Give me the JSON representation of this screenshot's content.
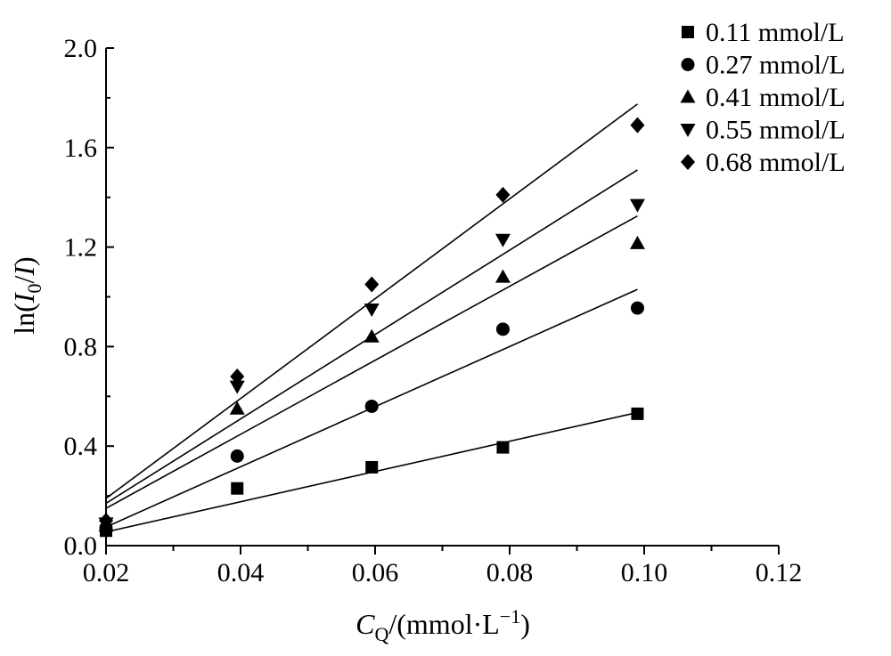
{
  "chart_data": {
    "type": "scatter",
    "title": "",
    "xlabel": {
      "main": "C",
      "sub": "Q",
      "unit_pre": "/(mmol·L",
      "sup": "−1",
      "unit_post": ")"
    },
    "ylabel": {
      "pre": "ln(",
      "var1": "I",
      "sub": "0",
      "slash": "/",
      "var2": "I",
      "post": ")"
    },
    "xlim": [
      0.02,
      0.12
    ],
    "ylim": [
      0.0,
      2.0
    ],
    "xticks": [
      0.02,
      0.04,
      0.06,
      0.08,
      0.1,
      0.12
    ],
    "xtick_labels": [
      "0.02",
      "0.04",
      "0.06",
      "0.08",
      "0.10",
      "0.12"
    ],
    "yticks": [
      0.0,
      0.4,
      0.8,
      1.2,
      1.6,
      2.0
    ],
    "ytick_labels": [
      "0.0",
      "0.4",
      "0.8",
      "1.2",
      "1.6",
      "2.0"
    ],
    "legend_position": "top-right",
    "series": [
      {
        "name": "0.11 mmol/L",
        "marker": "square",
        "x": [
          0.02,
          0.0395,
          0.0595,
          0.079,
          0.099
        ],
        "y": [
          0.06,
          0.23,
          0.315,
          0.395,
          0.53
        ],
        "fit": {
          "x": [
            0.02,
            0.099
          ],
          "y": [
            0.055,
            0.535
          ]
        }
      },
      {
        "name": "0.27 mmol/L",
        "marker": "circle",
        "x": [
          0.02,
          0.0395,
          0.0595,
          0.079,
          0.099
        ],
        "y": [
          0.07,
          0.36,
          0.56,
          0.87,
          0.955
        ],
        "fit": {
          "x": [
            0.02,
            0.099
          ],
          "y": [
            0.075,
            1.03
          ]
        }
      },
      {
        "name": "0.41 mmol/L",
        "marker": "triangle-up",
        "x": [
          0.02,
          0.0395,
          0.0595,
          0.079,
          0.099
        ],
        "y": [
          0.08,
          0.55,
          0.84,
          1.08,
          1.215
        ],
        "fit": {
          "x": [
            0.02,
            0.099
          ],
          "y": [
            0.15,
            1.325
          ]
        }
      },
      {
        "name": "0.55 mmol/L",
        "marker": "triangle-down",
        "x": [
          0.02,
          0.0395,
          0.0595,
          0.079,
          0.099
        ],
        "y": [
          0.09,
          0.64,
          0.95,
          1.23,
          1.37
        ],
        "fit": {
          "x": [
            0.02,
            0.099
          ],
          "y": [
            0.17,
            1.51
          ]
        }
      },
      {
        "name": "0.68 mmol/L",
        "marker": "diamond",
        "x": [
          0.02,
          0.0395,
          0.0595,
          0.079,
          0.099
        ],
        "y": [
          0.1,
          0.68,
          1.05,
          1.41,
          1.69
        ],
        "fit": {
          "x": [
            0.02,
            0.099
          ],
          "y": [
            0.19,
            1.775
          ]
        }
      }
    ]
  }
}
